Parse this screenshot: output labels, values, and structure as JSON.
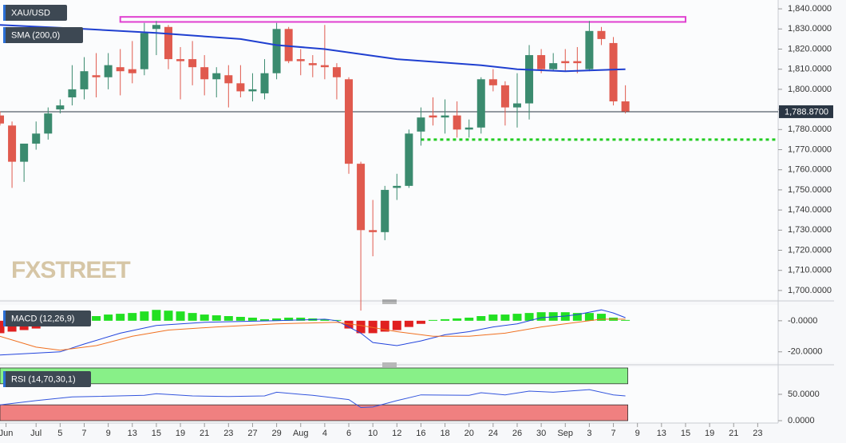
{
  "chart_data": [
    {
      "type": "candlestick",
      "title": "XAU/USD",
      "x": [
        0,
        1,
        2,
        3,
        4,
        5,
        6,
        7,
        8,
        9,
        10,
        11,
        12,
        13,
        14,
        15,
        16,
        17,
        18,
        19,
        20,
        21,
        22,
        23,
        24,
        25,
        26,
        27,
        28,
        29,
        30,
        31,
        32,
        33,
        34,
        35,
        36,
        37,
        38,
        39,
        40,
        41,
        42,
        43,
        44,
        45,
        46,
        47,
        48,
        49,
        50,
        51,
        52
      ],
      "open": [
        1787,
        1782,
        1764,
        1773,
        1778,
        1790,
        1796,
        1800,
        1807,
        1806,
        1811,
        1810,
        1810,
        1830,
        1831,
        1815,
        1815,
        1811,
        1805,
        1807,
        1803,
        1799,
        1798,
        1808,
        1830,
        1815,
        1813,
        1812,
        1811,
        1805,
        1763,
        1730,
        1729,
        1751,
        1752,
        1779,
        1787,
        1786,
        1787,
        1780,
        1781,
        1805,
        1802,
        1791,
        1793,
        1817,
        1810,
        1814,
        1814,
        1810,
        1829,
        1823,
        1794
      ],
      "high": [
        1789,
        1784,
        1772,
        1784,
        1791,
        1795,
        1812,
        1816,
        1818,
        1818,
        1820,
        1824,
        1833,
        1834,
        1832,
        1821,
        1824,
        1817,
        1811,
        1812,
        1812,
        1808,
        1815,
        1833,
        1831,
        1820,
        1817,
        1832,
        1813,
        1806,
        1764,
        1745,
        1752,
        1758,
        1780,
        1791,
        1796,
        1795,
        1794,
        1785,
        1806,
        1810,
        1804,
        1808,
        1822,
        1820,
        1818,
        1820,
        1821,
        1834,
        1831,
        1826,
        1802
      ],
      "low": [
        1782,
        1751,
        1754,
        1770,
        1775,
        1788,
        1792,
        1795,
        1796,
        1800,
        1797,
        1803,
        1807,
        1817,
        1810,
        1795,
        1802,
        1797,
        1796,
        1791,
        1796,
        1794,
        1795,
        1805,
        1813,
        1807,
        1806,
        1805,
        1795,
        1758,
        1690,
        1717,
        1725,
        1745,
        1751,
        1772,
        1782,
        1778,
        1776,
        1776,
        1778,
        1799,
        1782,
        1781,
        1785,
        1808,
        1809,
        1809,
        1808,
        1809,
        1822,
        1792,
        1788
      ],
      "close": [
        1783,
        1764,
        1773,
        1778,
        1788,
        1792,
        1800,
        1809,
        1806,
        1812,
        1809,
        1808,
        1828,
        1832,
        1815,
        1814,
        1811,
        1805,
        1808,
        1803,
        1799,
        1800,
        1808,
        1830,
        1814,
        1814,
        1812,
        1811,
        1806,
        1763,
        1730,
        1729,
        1750,
        1752,
        1778,
        1786,
        1786,
        1787,
        1780,
        1781,
        1805,
        1802,
        1791,
        1793,
        1817,
        1810,
        1813,
        1813,
        1813,
        1829,
        1825,
        1794,
        1789
      ],
      "up_color": "#3b8b6f",
      "down_color": "#e05a4e",
      "sma": {
        "name": "SMA (200,0)",
        "color": "#1f3fd0",
        "x": [
          0,
          7,
          13,
          20,
          23,
          27,
          33,
          40,
          43,
          47,
          52
        ],
        "values": [
          1832,
          1830,
          1828,
          1825,
          1822,
          1820,
          1815,
          1812,
          1810,
          1809,
          1810
        ]
      },
      "last_price": {
        "value": 1788.87,
        "label": "1,788.8700"
      },
      "resistance_box": {
        "color": "#e040d0",
        "x": [
          10,
          57
        ],
        "y": [
          1833.5,
          1836
        ]
      },
      "support_line": {
        "color": "#22cc22",
        "x": [
          35,
          64.7
        ],
        "value": 1775
      },
      "watermark": "FXSTREET",
      "xlim": [
        0,
        64.7
      ],
      "ylim": [
        1695.6,
        1844.4
      ],
      "yticks": [
        {
          "value": 1700,
          "label": "1,700.0000"
        },
        {
          "value": 1710,
          "label": "1,710.0000"
        },
        {
          "value": 1720,
          "label": "1,720.0000"
        },
        {
          "value": 1730,
          "label": "1,730.0000"
        },
        {
          "value": 1740,
          "label": "1,740.0000"
        },
        {
          "value": 1750,
          "label": "1,750.0000"
        },
        {
          "value": 1760,
          "label": "1,760.0000"
        },
        {
          "value": 1770,
          "label": "1,770.0000"
        },
        {
          "value": 1780,
          "label": "1,780.0000"
        },
        {
          "value": 1790,
          "label": "1,790.0000"
        },
        {
          "value": 1800,
          "label": "1,800.0000"
        },
        {
          "value": 1810,
          "label": "1,810.0000"
        },
        {
          "value": 1820,
          "label": "1,820.0000"
        },
        {
          "value": 1830,
          "label": "1,830.0000"
        },
        {
          "value": 1840,
          "label": "1,840.0000"
        }
      ],
      "xticks": [
        {
          "value": 0.5,
          "label": "Jun"
        },
        {
          "value": 3,
          "label": "Jul"
        },
        {
          "value": 5,
          "label": "5"
        },
        {
          "value": 7,
          "label": "7"
        },
        {
          "value": 9,
          "label": "9"
        },
        {
          "value": 11,
          "label": "13"
        },
        {
          "value": 13,
          "label": "15"
        },
        {
          "value": 15,
          "label": "19"
        },
        {
          "value": 17,
          "label": "21"
        },
        {
          "value": 19,
          "label": "23"
        },
        {
          "value": 21,
          "label": "27"
        },
        {
          "value": 23,
          "label": "29"
        },
        {
          "value": 25,
          "label": "Aug"
        },
        {
          "value": 27,
          "label": "4"
        },
        {
          "value": 29,
          "label": "6"
        },
        {
          "value": 31,
          "label": "10"
        },
        {
          "value": 33,
          "label": "12"
        },
        {
          "value": 35,
          "label": "16"
        },
        {
          "value": 37,
          "label": "18"
        },
        {
          "value": 39,
          "label": "20"
        },
        {
          "value": 41,
          "label": "24"
        },
        {
          "value": 43,
          "label": "26"
        },
        {
          "value": 45,
          "label": "30"
        },
        {
          "value": 47,
          "label": "Sep"
        },
        {
          "value": 49,
          "label": "3"
        },
        {
          "value": 51,
          "label": "7"
        },
        {
          "value": 53,
          "label": "9"
        },
        {
          "value": 55,
          "label": "13"
        },
        {
          "value": 57,
          "label": "15"
        },
        {
          "value": 59,
          "label": "19"
        },
        {
          "value": 61,
          "label": "21"
        },
        {
          "value": 63,
          "label": "23"
        }
      ]
    },
    {
      "type": "macd",
      "title": "MACD (12,26,9)",
      "histogram": {
        "up_color": "#22e022",
        "down_color": "#e02020",
        "x": [
          0,
          1,
          2,
          3,
          4,
          5,
          6,
          7,
          8,
          9,
          10,
          11,
          12,
          13,
          14,
          15,
          16,
          17,
          18,
          19,
          20,
          21,
          22,
          23,
          24,
          25,
          26,
          27,
          28,
          29,
          30,
          31,
          32,
          33,
          34,
          35,
          36,
          37,
          38,
          39,
          40,
          41,
          42,
          43,
          44,
          45,
          46,
          47,
          48,
          49,
          50,
          51,
          52
        ],
        "values": [
          -8,
          -7,
          -6,
          -5,
          -3,
          -1,
          1,
          2,
          3,
          4,
          4.5,
          5,
          6,
          7,
          6.5,
          6,
          5,
          4,
          3.5,
          3,
          2.5,
          2,
          1,
          1.5,
          2,
          2,
          1.5,
          1,
          0.5,
          -5,
          -8,
          -8,
          -7,
          -6,
          -4,
          -2,
          0.5,
          1,
          1.5,
          2,
          3,
          4,
          4,
          4.5,
          5,
          5.5,
          5.5,
          5.5,
          5,
          5,
          4.5,
          2,
          0.5
        ]
      },
      "series": [
        {
          "color": "#2244dd",
          "x": [
            0,
            5,
            7,
            10,
            13,
            17,
            23,
            27,
            28,
            30,
            31,
            33,
            35,
            37,
            39,
            41,
            43,
            45,
            47,
            48,
            50,
            51,
            52
          ],
          "values": [
            -22,
            -20,
            -15,
            -8,
            -3,
            -1,
            0,
            1,
            0,
            -8,
            -14,
            -16,
            -13,
            -9,
            -7,
            -4,
            -2,
            2,
            3,
            4,
            7,
            5,
            2
          ]
        },
        {
          "color": "#f07020",
          "x": [
            0,
            3,
            5,
            8,
            11,
            14,
            18,
            23,
            28,
            30,
            33,
            36,
            39,
            42,
            45,
            48,
            50,
            52
          ],
          "values": [
            -10,
            -17,
            -19,
            -16,
            -10,
            -6,
            -4,
            -2,
            -1,
            -3,
            -7,
            -10,
            -10,
            -8,
            -4,
            -1,
            1,
            1
          ]
        }
      ],
      "xlim": [
        0,
        64.7
      ],
      "ylim": [
        -26.8,
        10.2
      ],
      "yticks": [
        {
          "value": 0,
          "label": "-0.0000"
        },
        {
          "value": -20,
          "label": "-20.0000"
        }
      ]
    },
    {
      "type": "rsi",
      "title": "RSI (14,70,30,1)",
      "series": [
        {
          "color": "#3355dd",
          "x": [
            0,
            3,
            6,
            12,
            13,
            16,
            19,
            22,
            23,
            26,
            29,
            30,
            31,
            33,
            35,
            39,
            40,
            42,
            44,
            46,
            49,
            51,
            52
          ],
          "values": [
            30,
            38,
            45,
            48,
            51,
            47,
            46,
            47,
            54,
            48,
            40,
            25,
            26,
            38,
            49,
            48,
            53,
            49,
            56,
            54,
            59,
            49,
            47
          ]
        }
      ],
      "overbought": {
        "range": [
          70,
          100
        ],
        "color": "#88f088"
      },
      "oversold": {
        "range": [
          0,
          30
        ],
        "color": "#f08080"
      },
      "xlim": [
        0,
        64.7
      ],
      "ylim": [
        -4.5,
        101.5
      ],
      "yticks": [
        {
          "value": 50,
          "label": "50.0000"
        },
        {
          "value": 0,
          "label": "0.0000"
        }
      ]
    }
  ]
}
